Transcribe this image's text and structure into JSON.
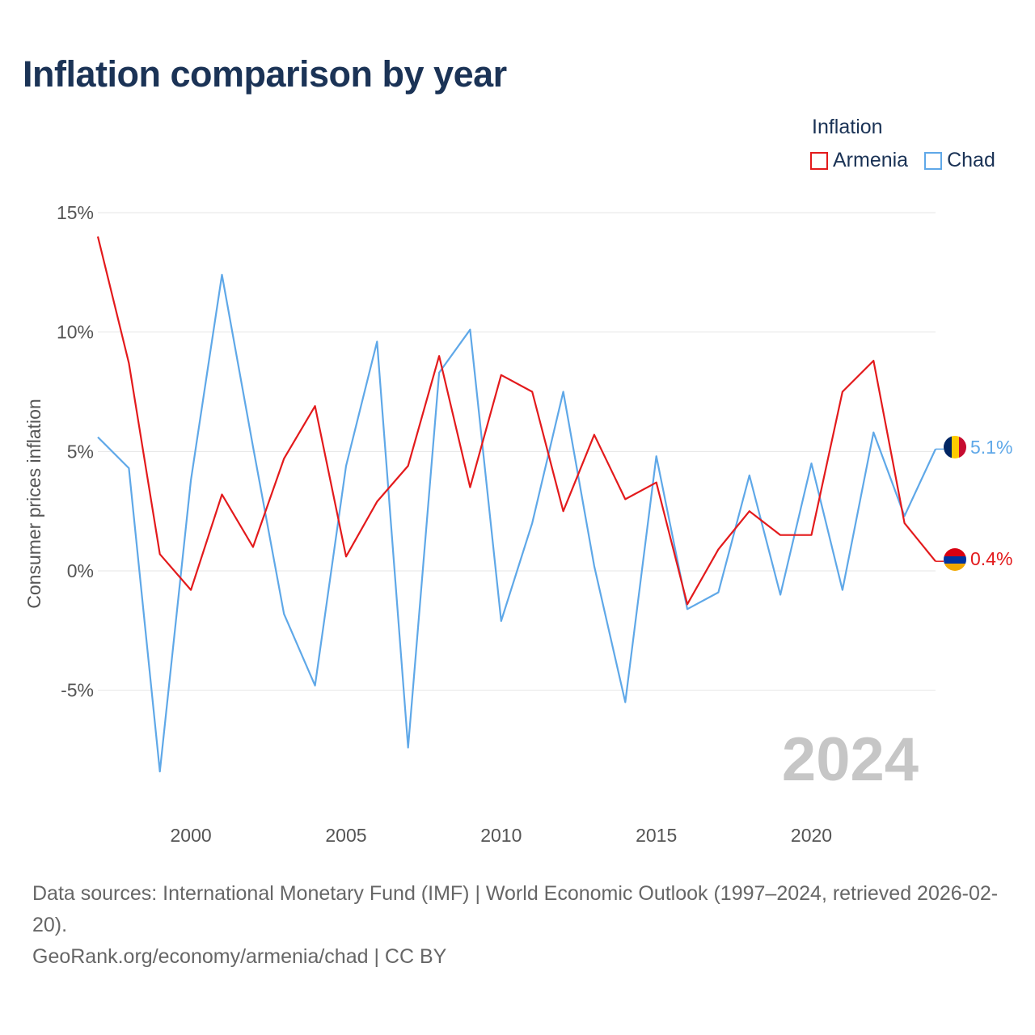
{
  "title": "Inflation comparison by year",
  "legend": {
    "title": "Inflation",
    "items": [
      {
        "label": "Armenia",
        "color": "#e31a1c"
      },
      {
        "label": "Chad",
        "color": "#5fa8e8"
      }
    ]
  },
  "chart_data": {
    "type": "line",
    "title": "Inflation comparison by year",
    "ylabel": "Consumer prices inflation",
    "xlabel": "",
    "xlim": [
      1997,
      2024
    ],
    "ylim": [
      -10,
      15
    ],
    "yticks": [
      15,
      10,
      5,
      0,
      -5
    ],
    "ytick_labels": [
      "15%",
      "10%",
      "5%",
      "0%",
      "-5%"
    ],
    "xticks": [
      2000,
      2005,
      2010,
      2015,
      2020
    ],
    "xtick_labels": [
      "2000",
      "2005",
      "2010",
      "2015",
      "2020"
    ],
    "x": [
      1997,
      1998,
      1999,
      2000,
      2001,
      2002,
      2003,
      2004,
      2005,
      2006,
      2007,
      2008,
      2009,
      2010,
      2011,
      2012,
      2013,
      2014,
      2015,
      2016,
      2017,
      2018,
      2019,
      2020,
      2021,
      2022,
      2023,
      2024
    ],
    "series": [
      {
        "name": "Armenia",
        "color": "#e31a1c",
        "end_label": "0.4%",
        "values": [
          14.0,
          8.7,
          0.7,
          -0.8,
          3.2,
          1.0,
          4.7,
          6.9,
          0.6,
          2.9,
          4.4,
          9.0,
          3.5,
          8.2,
          7.5,
          2.5,
          5.7,
          3.0,
          3.7,
          -1.4,
          0.9,
          2.5,
          1.5,
          1.5,
          7.5,
          8.8,
          2.0,
          0.4
        ]
      },
      {
        "name": "Chad",
        "color": "#5fa8e8",
        "end_label": "5.1%",
        "values": [
          5.6,
          4.3,
          -8.4,
          3.8,
          12.4,
          5.2,
          -1.8,
          -4.8,
          4.4,
          9.6,
          -7.4,
          8.3,
          10.1,
          -2.1,
          2.0,
          7.5,
          0.2,
          -5.5,
          4.8,
          -1.6,
          -0.9,
          4.0,
          -1.0,
          4.5,
          -0.8,
          5.8,
          2.3,
          5.1
        ]
      }
    ],
    "annotation_year": "2024"
  },
  "footer": {
    "source": "Data sources: International Monetary Fund (IMF) | World Economic Outlook (1997–2024, retrieved 2026-02-20).",
    "credit": "GeoRank.org/economy/armenia/chad | CC BY"
  }
}
